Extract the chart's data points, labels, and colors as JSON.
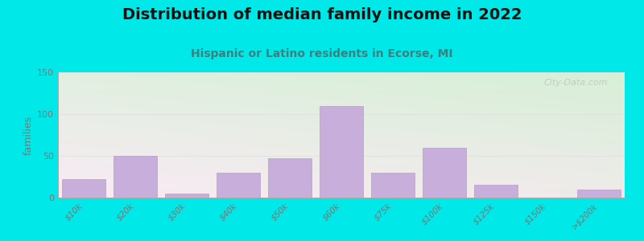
{
  "title": "Distribution of median family income in 2022",
  "subtitle": "Hispanic or Latino residents in Ecorse, MI",
  "categories": [
    "$10k",
    "$20k",
    "$30k",
    "$40k",
    "$50k",
    "$60k",
    "$75k",
    "$100k",
    "$125k",
    "$150k",
    ">$200k"
  ],
  "values": [
    22,
    50,
    5,
    30,
    47,
    110,
    30,
    60,
    15,
    0,
    10
  ],
  "bar_color": "#c8aeda",
  "bar_edge_color": "#b89ccc",
  "background_outer": "#00e8e8",
  "ylabel": "families",
  "ylim": [
    0,
    150
  ],
  "yticks": [
    0,
    50,
    100,
    150
  ],
  "watermark": "City-Data.com",
  "title_fontsize": 14,
  "subtitle_fontsize": 10,
  "subtitle_color": "#3a8080",
  "title_color": "#111111",
  "tick_label_color": "#777777",
  "axis_color": "#aaaaaa",
  "grid_color": "#dddddd",
  "ylabel_color": "#777777",
  "ylabel_fontsize": 9
}
